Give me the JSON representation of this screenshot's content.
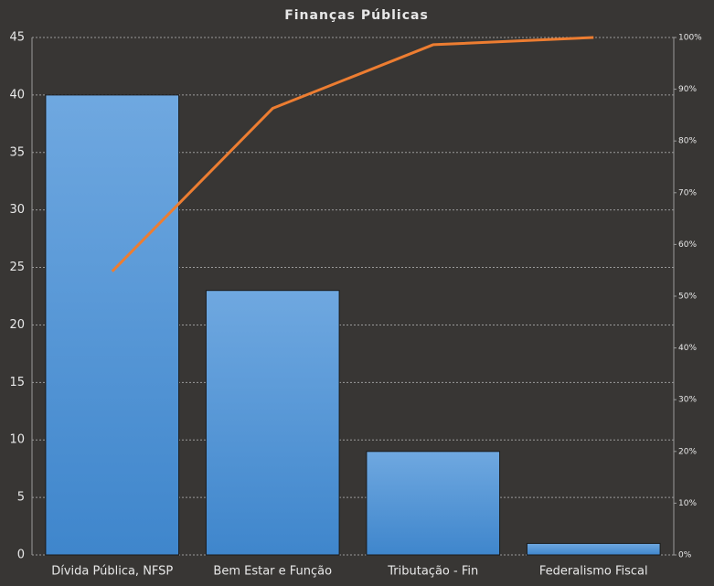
{
  "chart_data": {
    "type": "bar",
    "title": "Finanças Públicas",
    "categories": [
      "Dívida Pública, NFSP",
      "Bem Estar e Função",
      "Tributação - Fin",
      "Federalismo Fiscal"
    ],
    "series": [
      {
        "type": "bar",
        "color": "#5b9bd5",
        "values": [
          40,
          23,
          9,
          1
        ]
      },
      {
        "type": "line",
        "axis": "y2",
        "color": "#ed7d31",
        "values": [
          54.8,
          86.3,
          98.6,
          100
        ]
      }
    ],
    "ylim": [
      0,
      45
    ],
    "yticks": [
      0,
      5,
      10,
      15,
      20,
      25,
      30,
      35,
      40,
      45
    ],
    "y2lim": [
      0,
      100
    ],
    "y2ticks": [
      {
        "value": 0,
        "label": "0%"
      },
      {
        "value": 10,
        "label": "10%"
      },
      {
        "value": 20,
        "label": "20%"
      },
      {
        "value": 30,
        "label": "30%"
      },
      {
        "value": 40,
        "label": "40%"
      },
      {
        "value": 50,
        "label": "50%"
      },
      {
        "value": 60,
        "label": "60%"
      },
      {
        "value": 70,
        "label": "70%"
      },
      {
        "value": 80,
        "label": "80%"
      },
      {
        "value": 90,
        "label": "90%"
      },
      {
        "value": 100,
        "label": "100%"
      }
    ],
    "grid": true
  }
}
